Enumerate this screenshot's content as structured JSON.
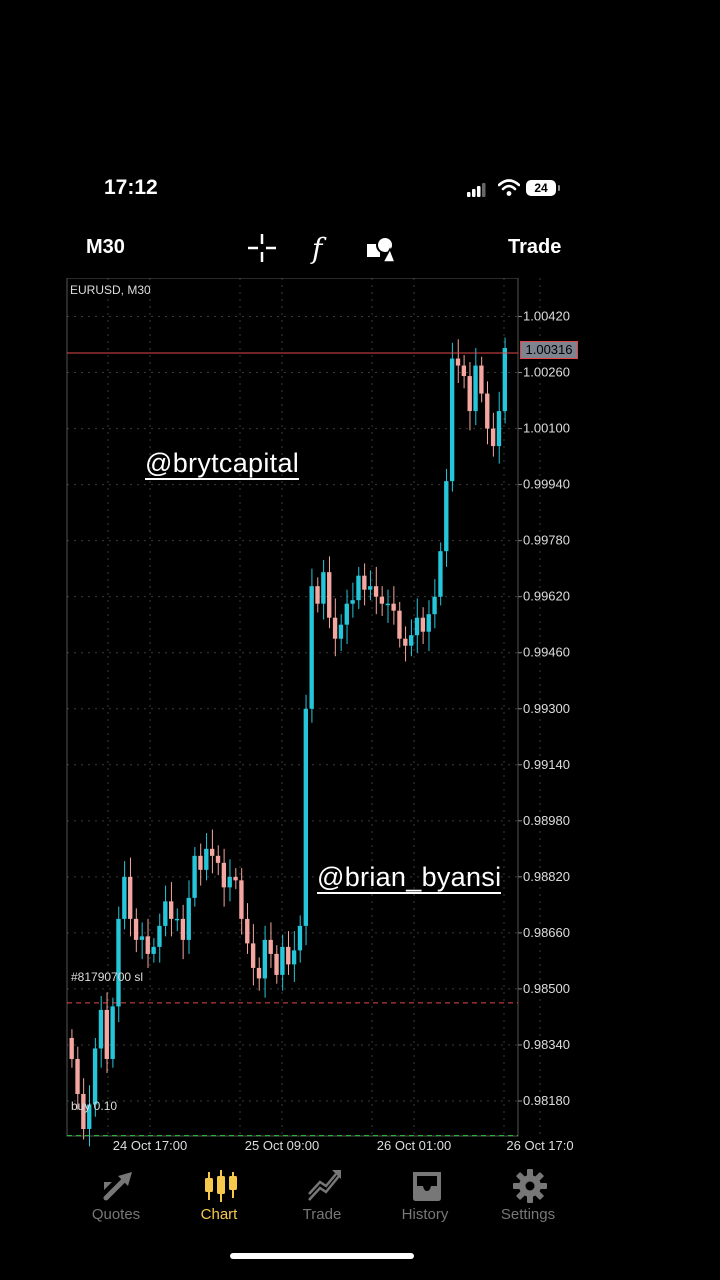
{
  "status_bar": {
    "time": "17:12",
    "battery": "24"
  },
  "toolbar": {
    "timeframe": "M30",
    "icons": [
      "crosshair-icon",
      "function-icon",
      "objects-icon"
    ],
    "trade_label": "Trade"
  },
  "chart": {
    "symbol_label": "EURUSD, M30",
    "current_price_label": "1.00316",
    "order_sl_label": "#81790700 sl",
    "order_open_label": "buy 0.10",
    "watermark_top": "@brytcapital",
    "watermark_bottom": "@brian_byansi",
    "colors": {
      "up": "#26c6da",
      "down": "#f4a7a0",
      "grid": "#3a3a3a",
      "price_line": "#e2484b",
      "sl_line": "#e2484b",
      "open_line": "#2ecc40"
    }
  },
  "chart_data": {
    "type": "candlestick",
    "symbol": "EURUSD",
    "timeframe": "M30",
    "y_ticks": [
      "1.00420",
      "1.00260",
      "1.00100",
      "0.99940",
      "0.99780",
      "0.99620",
      "0.99460",
      "0.99300",
      "0.99140",
      "0.98980",
      "0.98820",
      "0.98660",
      "0.98500",
      "0.98340",
      "0.98180"
    ],
    "x_ticks": [
      "24 Oct 17:00",
      "25 Oct 09:00",
      "26 Oct 01:00",
      "26 Oct 17:0"
    ],
    "ylim": [
      0.9808,
      1.0053
    ],
    "current_price": 1.00316,
    "stop_loss_level": 0.9846,
    "entry_level": 0.98081,
    "closes": [
      0.983,
      0.982,
      0.981,
      0.9817,
      0.9833,
      0.9844,
      0.983,
      0.9845,
      0.987,
      0.9882,
      0.987,
      0.9864,
      0.9865,
      0.986,
      0.9862,
      0.9868,
      0.9875,
      0.987,
      0.987,
      0.9864,
      0.9876,
      0.9888,
      0.9884,
      0.989,
      0.9888,
      0.9886,
      0.9879,
      0.9882,
      0.9881,
      0.987,
      0.9863,
      0.9856,
      0.9853,
      0.9864,
      0.986,
      0.9854,
      0.9862,
      0.9857,
      0.9861,
      0.9868,
      0.993,
      0.9965,
      0.996,
      0.9969,
      0.9956,
      0.995,
      0.9954,
      0.996,
      0.9961,
      0.9968,
      0.9964,
      0.9965,
      0.9962,
      0.996,
      0.996,
      0.9958,
      0.995,
      0.9948,
      0.9951,
      0.9956,
      0.9952,
      0.9957,
      0.9962,
      0.9975,
      0.9995,
      1.003,
      1.0028,
      1.0025,
      1.0015,
      1.0028,
      1.002,
      1.001,
      1.0005,
      1.0015,
      1.0033
    ]
  },
  "tabs": [
    {
      "label": "Quotes",
      "icon": "quotes-arrows-icon"
    },
    {
      "label": "Chart",
      "icon": "candlestick-chart-icon"
    },
    {
      "label": "Trade",
      "icon": "trade-line-icon"
    },
    {
      "label": "History",
      "icon": "history-inbox-icon"
    },
    {
      "label": "Settings",
      "icon": "gear-icon"
    }
  ],
  "active_tab": "Chart"
}
